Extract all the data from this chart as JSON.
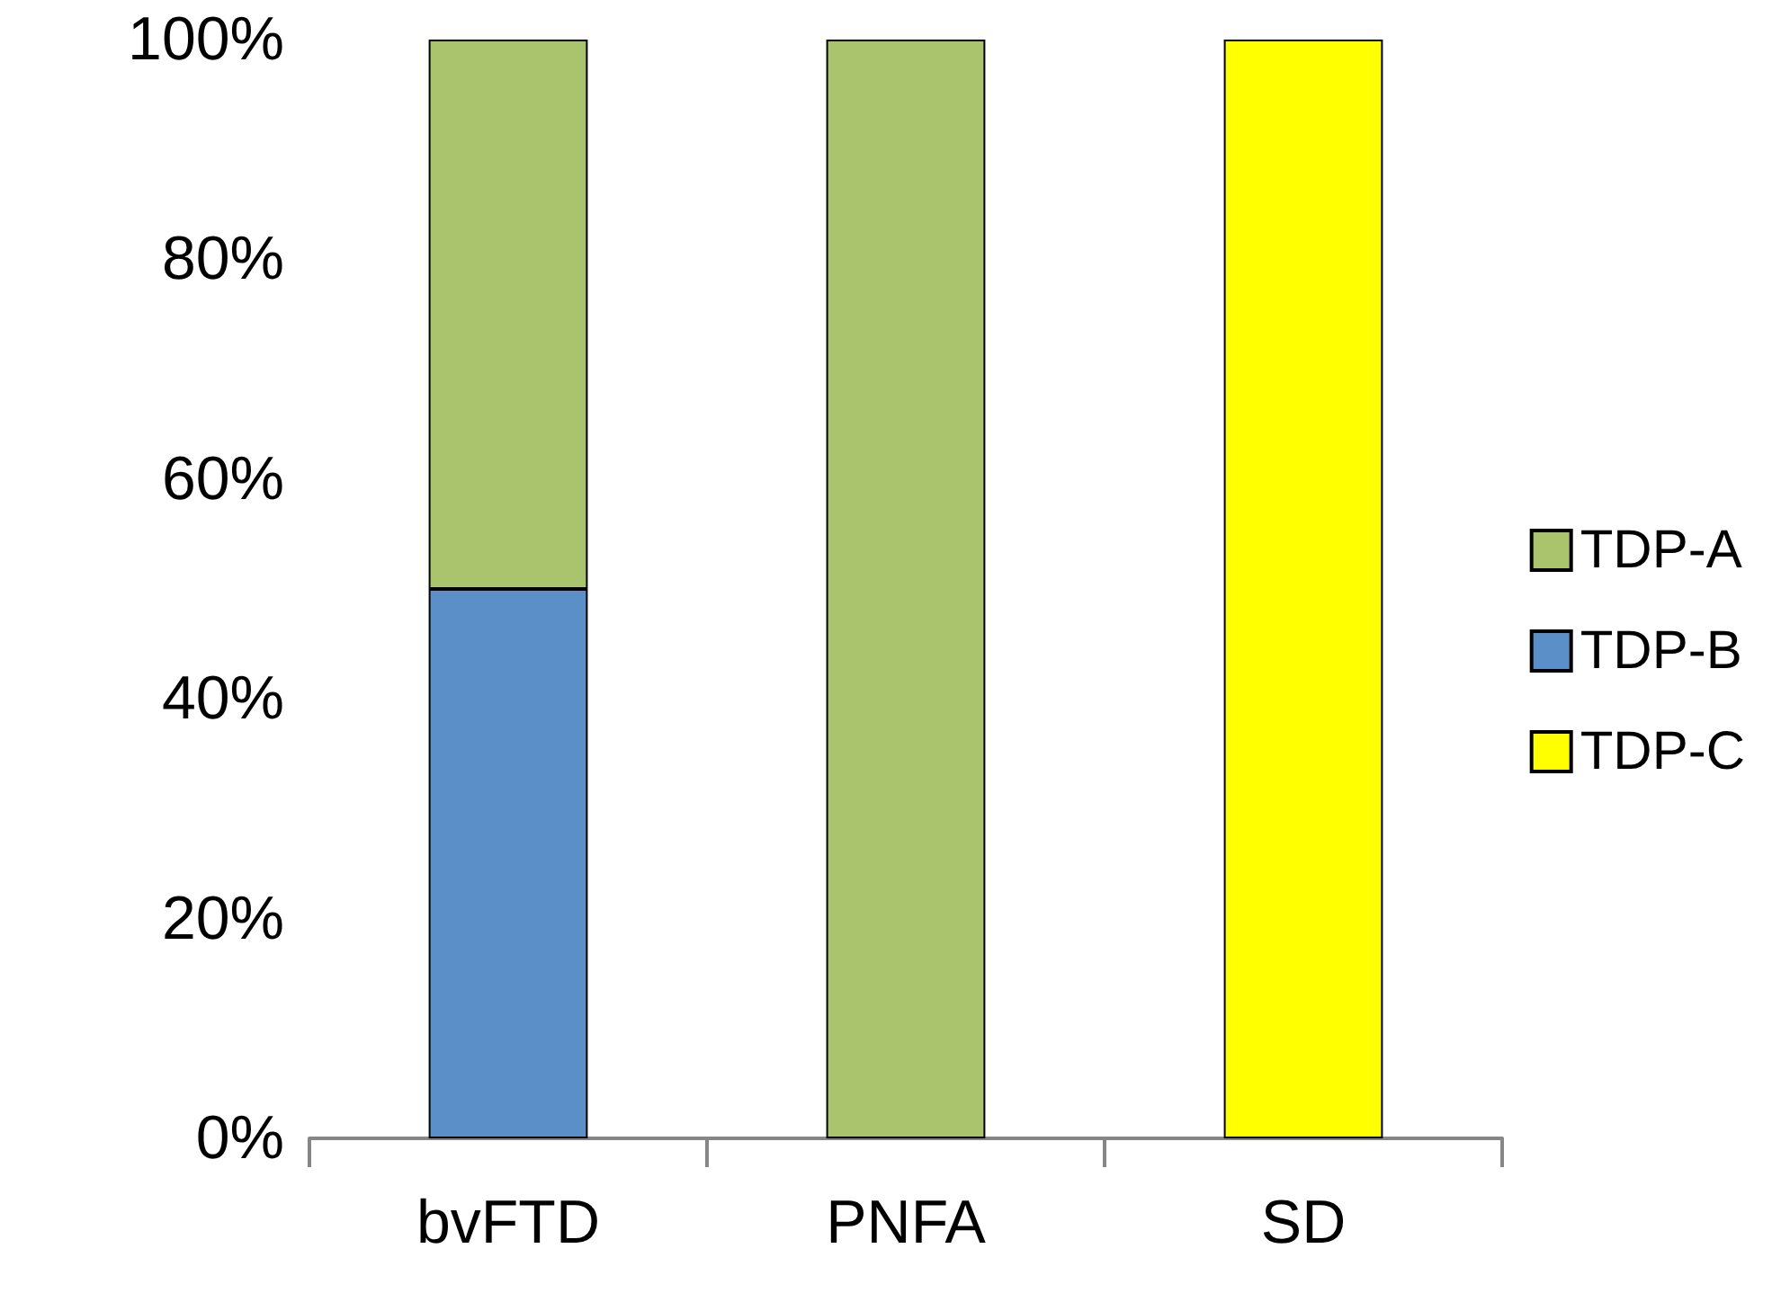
{
  "chart_data": {
    "type": "bar",
    "stacked": true,
    "categories": [
      "bvFTD",
      "PNFA",
      "SD"
    ],
    "series": [
      {
        "name": "TDP-C",
        "color": "#ffff00",
        "values": [
          null,
          null,
          100
        ]
      },
      {
        "name": "TDP-B",
        "color": "#5b8fc7",
        "values": [
          50,
          null,
          null
        ]
      },
      {
        "name": "TDP-A",
        "color": "#a9c46c",
        "values": [
          50,
          100,
          null
        ]
      }
    ],
    "ylim": [
      0,
      100
    ],
    "yticks": [
      {
        "value": 0,
        "label": "0%"
      },
      {
        "value": 20,
        "label": "20%"
      },
      {
        "value": 40,
        "label": "40%"
      },
      {
        "value": 60,
        "label": "60%"
      },
      {
        "value": 80,
        "label": "80%"
      },
      {
        "value": 100,
        "label": "100%"
      }
    ],
    "grid": false,
    "legend": "right"
  }
}
